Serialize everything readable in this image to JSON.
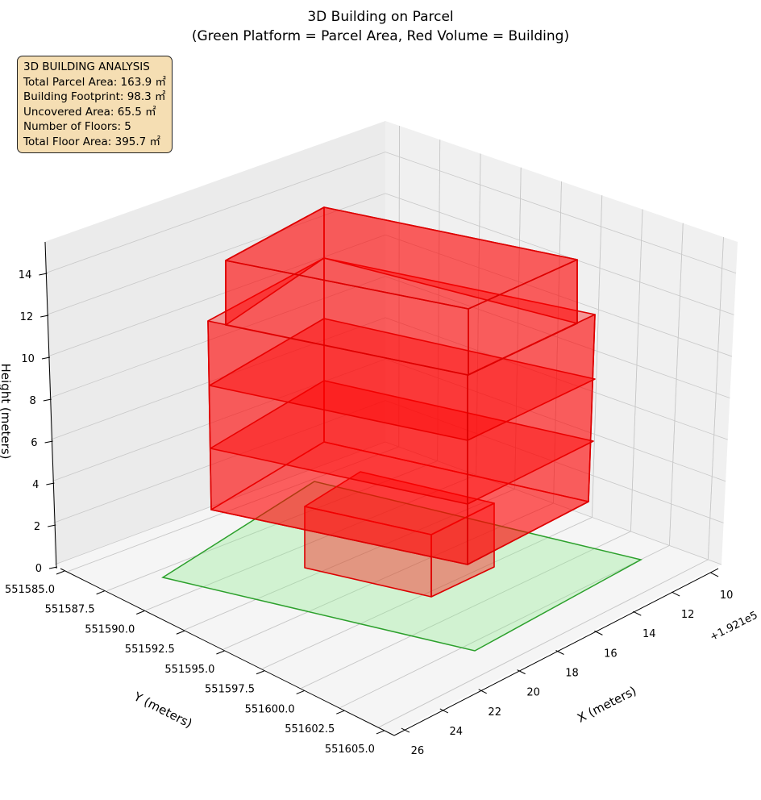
{
  "chart_data": {
    "type": "3d-polygons",
    "title_line1": "3D Building on Parcel",
    "title_line2": "(Green Platform = Parcel Area, Red Volume = Building)",
    "xlabel": "X (meters)",
    "ylabel": "Y (meters)",
    "zlabel": "Height (meters)",
    "x_offset_label": "+1.921e5",
    "x_ticks": [
      "10",
      "12",
      "14",
      "16",
      "18",
      "20",
      "22",
      "24",
      "26"
    ],
    "y_ticks": [
      "551585.0",
      "551587.5",
      "551590.0",
      "551592.5",
      "551595.0",
      "551597.5",
      "551600.0",
      "551602.5",
      "551605.0"
    ],
    "z_ticks": [
      "0",
      "2",
      "4",
      "6",
      "8",
      "10",
      "12",
      "14"
    ],
    "zlim": [
      0,
      15.5
    ],
    "floors": 5,
    "colors": {
      "parcel": "#2ca02c",
      "parcel_fill": "#90ee90",
      "building": "#dd0000",
      "building_fill": "#ff0000"
    }
  },
  "info_box": {
    "title": "3D BUILDING ANALYSIS",
    "lines": [
      "Total Parcel Area: 163.9 ㎡",
      "Building Footprint: 98.3 ㎡",
      "Uncovered Area: 65.5 ㎡",
      "Number of Floors: 5",
      "Total Floor Area: 395.7 ㎡"
    ]
  }
}
